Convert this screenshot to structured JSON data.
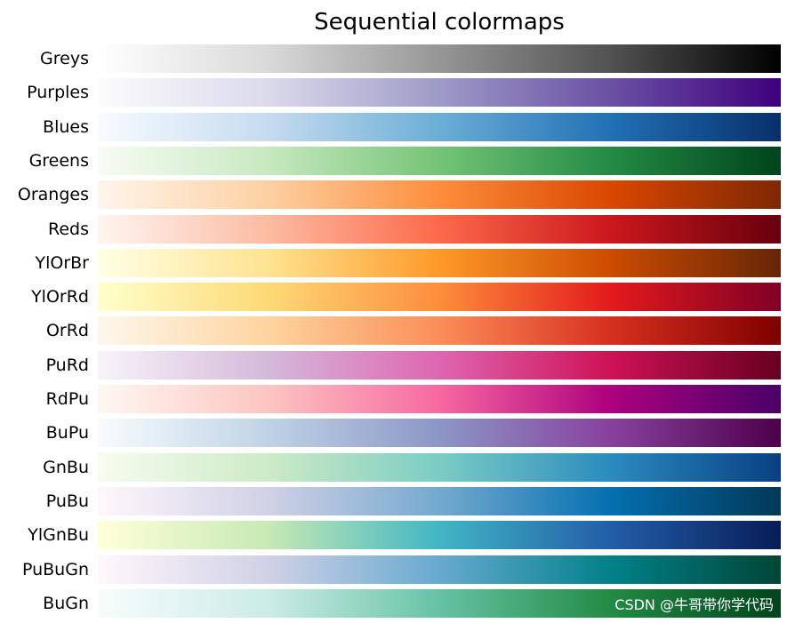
{
  "chart_data": {
    "type": "heatmap",
    "title": "Sequential colormaps",
    "xlabel": "",
    "ylabel": "",
    "grid": false,
    "series": [
      {
        "name": "Greys",
        "stops": [
          "#ffffff",
          "#d9d9d9",
          "#969696",
          "#525252",
          "#000000"
        ]
      },
      {
        "name": "Purples",
        "stops": [
          "#fcfbfd",
          "#dadaeb",
          "#9e9ac8",
          "#6a51a3",
          "#3f007d"
        ]
      },
      {
        "name": "Blues",
        "stops": [
          "#f7fbff",
          "#c6dbef",
          "#6baed6",
          "#2171b5",
          "#08306b"
        ]
      },
      {
        "name": "Greens",
        "stops": [
          "#f7fcf5",
          "#c7e9c0",
          "#74c476",
          "#238b45",
          "#00441b"
        ]
      },
      {
        "name": "Oranges",
        "stops": [
          "#fff5eb",
          "#fdd0a2",
          "#fd8d3c",
          "#d94801",
          "#7f2704"
        ]
      },
      {
        "name": "Reds",
        "stops": [
          "#fff5f0",
          "#fcbba1",
          "#fb6a4a",
          "#cb181d",
          "#67000d"
        ]
      },
      {
        "name": "YlOrBr",
        "stops": [
          "#ffffe5",
          "#fee391",
          "#fe9929",
          "#cc4c02",
          "#662506"
        ]
      },
      {
        "name": "YlOrRd",
        "stops": [
          "#ffffcc",
          "#fed976",
          "#fd8d3c",
          "#e31a1c",
          "#800026"
        ]
      },
      {
        "name": "OrRd",
        "stops": [
          "#fff7ec",
          "#fdd49e",
          "#fc8d59",
          "#d7301f",
          "#7f0000"
        ]
      },
      {
        "name": "PuRd",
        "stops": [
          "#f7f4f9",
          "#d4b9da",
          "#df65b0",
          "#ce1256",
          "#67001f"
        ]
      },
      {
        "name": "RdPu",
        "stops": [
          "#fff7f3",
          "#fcc5c0",
          "#f768a1",
          "#ae017e",
          "#49006a"
        ]
      },
      {
        "name": "BuPu",
        "stops": [
          "#f7fcfd",
          "#bfd3e6",
          "#8c96c6",
          "#88419d",
          "#4d004b"
        ]
      },
      {
        "name": "GnBu",
        "stops": [
          "#f7fcf0",
          "#ccebc5",
          "#7bccc4",
          "#2b8cbe",
          "#084081"
        ]
      },
      {
        "name": "PuBu",
        "stops": [
          "#fff7fb",
          "#d0d1e6",
          "#74a9cf",
          "#0570b0",
          "#023858"
        ]
      },
      {
        "name": "YlGnBu",
        "stops": [
          "#ffffd9",
          "#c7e9b4",
          "#41b6c4",
          "#225ea8",
          "#081d58"
        ]
      },
      {
        "name": "PuBuGn",
        "stops": [
          "#fff7fb",
          "#d0d1e6",
          "#67a9cf",
          "#02818a",
          "#014636"
        ]
      },
      {
        "name": "BuGn",
        "stops": [
          "#f7fcfd",
          "#ccece6",
          "#66c2a4",
          "#238b45",
          "#00441b"
        ]
      }
    ]
  },
  "watermark": "CSDN @牛哥带你学代码"
}
